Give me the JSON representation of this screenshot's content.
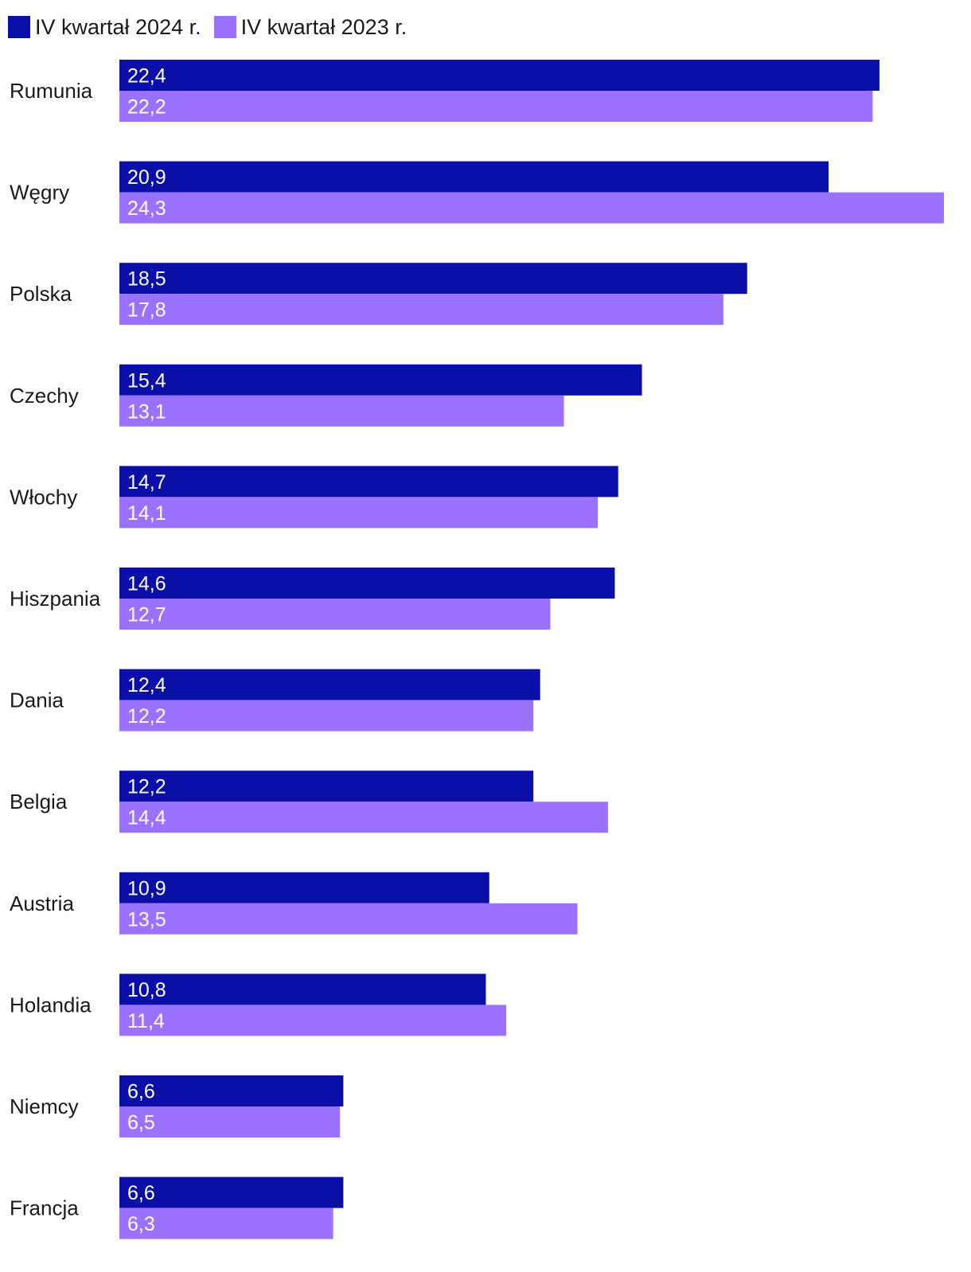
{
  "chart_data": {
    "type": "bar",
    "orientation": "horizontal",
    "title": "",
    "xlabel": "",
    "ylabel": "",
    "xlim": [
      0,
      24.3
    ],
    "grid": false,
    "legend_position": "top-left",
    "categories": [
      "Rumunia",
      "Węgry",
      "Polska",
      "Czechy",
      "Włochy",
      "Hiszpania",
      "Dania",
      "Belgia",
      "Austria",
      "Holandia",
      "Niemcy",
      "Francja"
    ],
    "series": [
      {
        "name": "IV kwartał 2024 r.",
        "color": "#0a0fa8",
        "values": [
          22.4,
          20.9,
          18.5,
          15.4,
          14.7,
          14.6,
          12.4,
          12.2,
          10.9,
          10.8,
          6.6,
          6.6
        ],
        "labels": [
          "22,4",
          "20,9",
          "18,5",
          "15,4",
          "14,7",
          "14,6",
          "12,4",
          "12,2",
          "10,9",
          "10,8",
          "6,6",
          "6,6"
        ]
      },
      {
        "name": "IV kwartał 2023 r.",
        "color": "#9b72ff",
        "values": [
          22.2,
          24.3,
          17.8,
          13.1,
          14.1,
          12.7,
          12.2,
          14.4,
          13.5,
          11.4,
          6.5,
          6.3
        ],
        "labels": [
          "22,2",
          "24,3",
          "17,8",
          "13,1",
          "14,1",
          "12,7",
          "12,2",
          "14,4",
          "13,5",
          "11,4",
          "6,5",
          "6,3"
        ]
      }
    ]
  }
}
